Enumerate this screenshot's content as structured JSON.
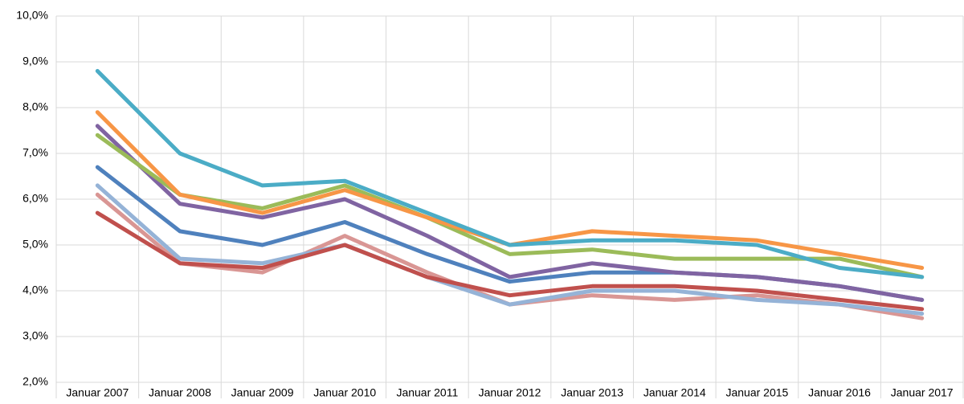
{
  "chart_data": {
    "type": "line",
    "categories": [
      "Januar 2007",
      "Januar 2008",
      "Januar 2009",
      "Januar 2010",
      "Januar 2011",
      "Januar 2012",
      "Januar 2013",
      "Januar 2014",
      "Januar 2015",
      "Januar 2016",
      "Januar 2017"
    ],
    "series": [
      {
        "color": "#4bacc6",
        "values": [
          8.8,
          7.0,
          6.3,
          6.4,
          5.7,
          5.0,
          5.1,
          5.1,
          5.0,
          4.5,
          4.3
        ]
      },
      {
        "color": "#f79646",
        "values": [
          7.9,
          6.1,
          5.7,
          6.2,
          5.6,
          5.0,
          5.3,
          5.2,
          5.1,
          4.8,
          4.5
        ]
      },
      {
        "color": "#9bbb59",
        "values": [
          7.4,
          6.1,
          5.8,
          6.3,
          5.6,
          4.8,
          4.9,
          4.7,
          4.7,
          4.7,
          4.3
        ]
      },
      {
        "color": "#8064a2",
        "values": [
          7.6,
          5.9,
          5.6,
          6.0,
          5.2,
          4.3,
          4.6,
          4.4,
          4.3,
          4.1,
          3.8
        ]
      },
      {
        "color": "#4f81bd",
        "values": [
          6.7,
          5.3,
          5.0,
          5.5,
          4.8,
          4.2,
          4.4,
          4.4,
          4.3,
          4.1,
          3.8
        ]
      },
      {
        "color": "#c0504d",
        "values": [
          5.7,
          4.6,
          4.5,
          5.0,
          4.3,
          3.9,
          4.1,
          4.1,
          4.0,
          3.8,
          3.6
        ]
      },
      {
        "color": "#95b3d7",
        "values": [
          6.3,
          4.7,
          4.6,
          5.0,
          4.3,
          3.7,
          4.0,
          4.0,
          3.8,
          3.7,
          3.5
        ]
      },
      {
        "color": "#d99694",
        "values": [
          6.1,
          4.6,
          4.4,
          5.2,
          4.4,
          3.7,
          3.9,
          3.8,
          3.9,
          3.7,
          3.4
        ]
      }
    ],
    "ylim": [
      2,
      10
    ],
    "yticks": [
      {
        "value": 2,
        "label": "2,0%"
      },
      {
        "value": 3,
        "label": "3,0%"
      },
      {
        "value": 4,
        "label": "4,0%"
      },
      {
        "value": 5,
        "label": "5,0%"
      },
      {
        "value": 6,
        "label": "6,0%"
      },
      {
        "value": 7,
        "label": "7,0%"
      },
      {
        "value": 8,
        "label": "8,0%"
      },
      {
        "value": 9,
        "label": "9,0%"
      },
      {
        "value": 10,
        "label": "10,0%"
      }
    ],
    "grid": true
  }
}
